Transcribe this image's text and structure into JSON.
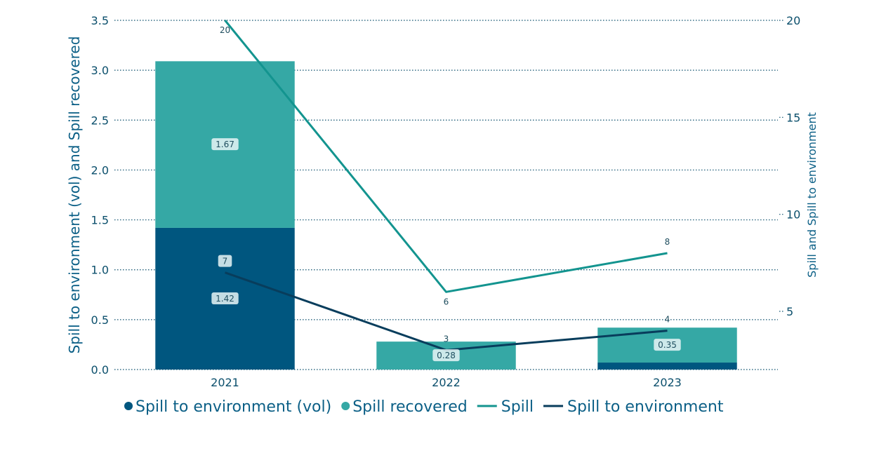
{
  "chart_data": {
    "type": "bar",
    "categories": [
      "2021",
      "2022",
      "2023"
    ],
    "bar_series": [
      {
        "name": "Spill to environment (vol)",
        "values": [
          1.42,
          0,
          0.07
        ],
        "color": "#00567f",
        "labels": [
          "1.42",
          "",
          ""
        ]
      },
      {
        "name": "Spill recovered",
        "values": [
          1.67,
          0.28,
          0.35
        ],
        "color": "#35a8a5",
        "labels": [
          "1.67",
          "0.28",
          "0.35"
        ]
      }
    ],
    "line_series": [
      {
        "name": "Spill",
        "values": [
          20,
          6,
          8
        ],
        "color": "#13948f",
        "labels": [
          "20",
          "6",
          "8"
        ]
      },
      {
        "name": "Spill to environment",
        "values": [
          7,
          3,
          4
        ],
        "color": "#083d5c",
        "labels": [
          "7",
          "3",
          "4"
        ]
      }
    ],
    "ylabel": "Spill to environment (vol) and Spill recovered",
    "y2label": "Spill and Spill to environment",
    "ylim": [
      0,
      3.5
    ],
    "yticks": [
      "0.0",
      "0.5",
      "1.0",
      "1.5",
      "2.0",
      "2.5",
      "3.0",
      "3.5"
    ],
    "y2lim": [
      2,
      20
    ],
    "y2ticks": [
      "5",
      "10",
      "15",
      "20"
    ],
    "grid": true,
    "legend_position": "bottom"
  }
}
